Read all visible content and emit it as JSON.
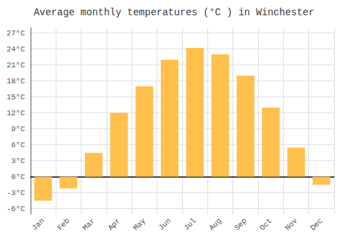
{
  "chart_data": {
    "type": "bar",
    "title": "Average monthly temperatures (°C ) in Winchester",
    "categories": [
      "Jan",
      "Feb",
      "Mar",
      "Apr",
      "May",
      "Jun",
      "Jul",
      "Aug",
      "Sep",
      "Oct",
      "Nov",
      "Dec"
    ],
    "values": [
      -4.5,
      -2.2,
      4.5,
      12.0,
      17.0,
      22.0,
      24.2,
      23.0,
      19.0,
      13.0,
      5.5,
      -1.5
    ],
    "color": "#FFC04D",
    "ylim": [
      -7,
      28
    ],
    "yticks": [
      {
        "value": -6,
        "label": "-6°C"
      },
      {
        "value": -3,
        "label": "-3°C"
      },
      {
        "value": 0,
        "label": "0°C"
      },
      {
        "value": 3,
        "label": "3°C"
      },
      {
        "value": 6,
        "label": "6°C"
      },
      {
        "value": 9,
        "label": "9°C"
      },
      {
        "value": 12,
        "label": "12°C"
      },
      {
        "value": 15,
        "label": "15°C"
      },
      {
        "value": 18,
        "label": "18°C"
      },
      {
        "value": 21,
        "label": "21°C"
      },
      {
        "value": 24,
        "label": "24°C"
      },
      {
        "value": 27,
        "label": "27°C"
      }
    ],
    "grid": true
  }
}
